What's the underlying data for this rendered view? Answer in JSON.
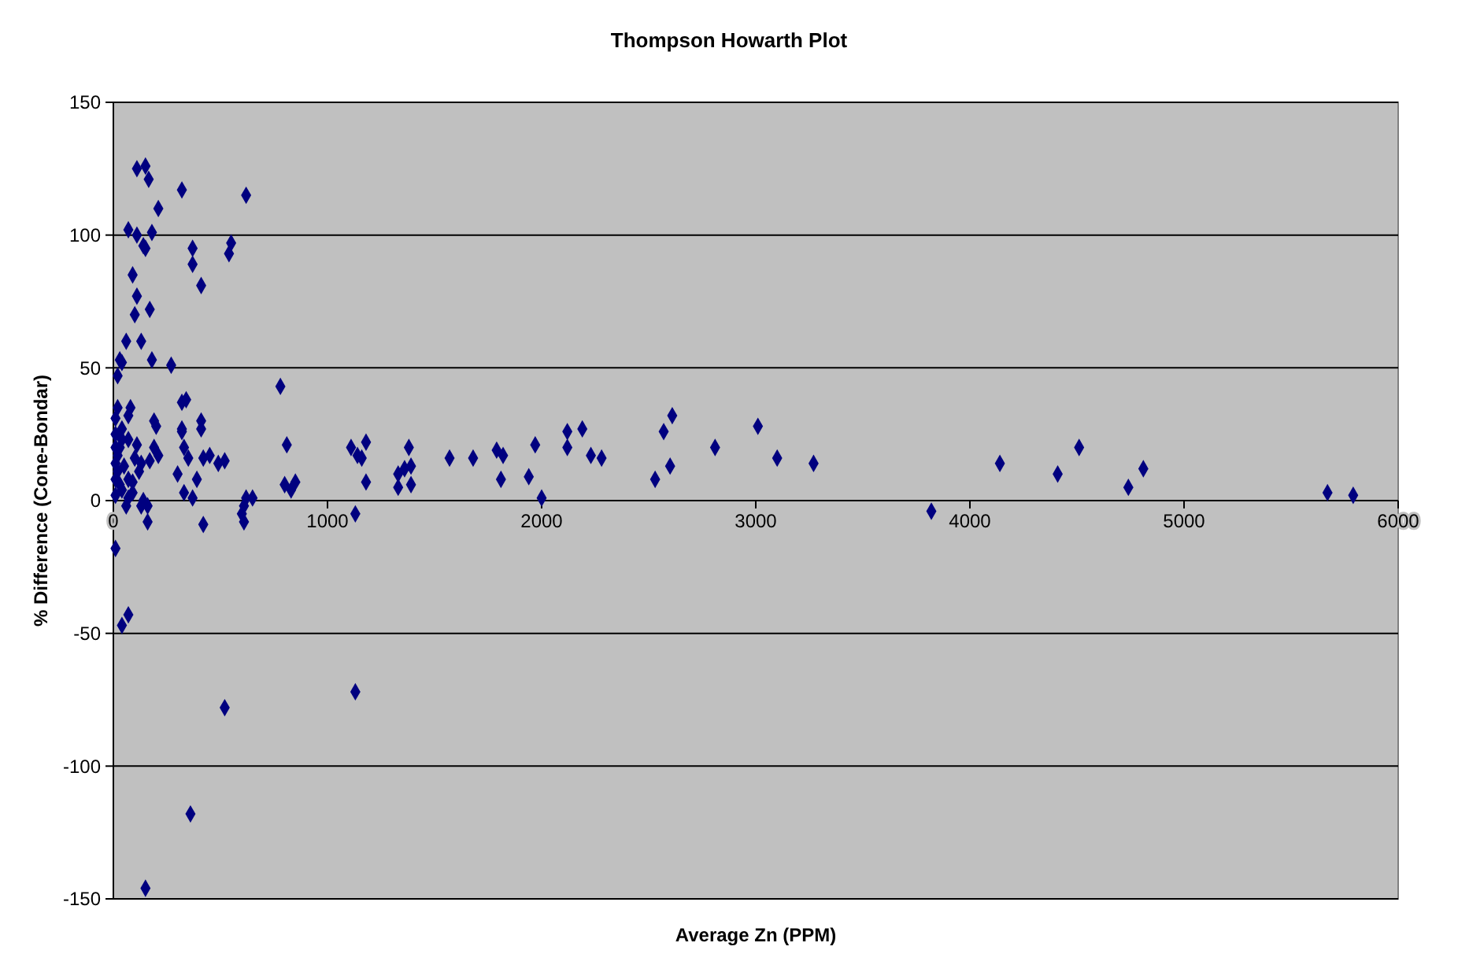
{
  "chart_data": {
    "type": "scatter",
    "title": "Thompson Howarth Plot",
    "xlabel": "Average Zn (PPM)",
    "ylabel": "% Difference (Cone-Bondar)",
    "xlim": [
      0,
      6000
    ],
    "ylim": [
      -150,
      150
    ],
    "xticks": [
      0,
      1000,
      2000,
      3000,
      4000,
      5000,
      6000
    ],
    "yticks": [
      -150,
      -100,
      -50,
      0,
      50,
      100,
      150
    ],
    "grid": "y",
    "marker": "diamond",
    "series": [
      {
        "color": "#000080",
        "x": [
          110,
          150,
          165,
          320,
          210,
          620,
          70,
          110,
          140,
          150,
          180,
          370,
          540,
          550,
          90,
          370,
          410,
          110,
          100,
          170,
          60,
          130,
          180,
          270,
          780,
          20,
          40,
          30,
          320,
          340,
          410,
          410,
          200,
          190,
          20,
          70,
          80,
          110,
          130,
          120,
          170,
          190,
          210,
          320,
          320,
          330,
          350,
          420,
          450,
          490,
          520,
          300,
          390,
          330,
          370,
          10,
          70,
          140,
          160,
          60,
          620,
          610,
          650,
          600,
          610,
          420,
          160,
          130,
          10,
          20,
          30,
          40,
          10,
          40,
          70,
          70,
          30,
          40,
          90,
          90,
          10,
          20,
          50,
          100,
          10,
          10,
          10,
          40,
          70,
          520,
          360,
          150,
          1130,
          1130,
          1330,
          1380,
          1390,
          1360,
          1330,
          1390,
          1570,
          1680,
          1790,
          1820,
          1810,
          1940,
          1970,
          2000,
          2120,
          2120,
          2190,
          2230,
          2280,
          2530,
          2570,
          2600,
          2610,
          2810,
          3010,
          3100,
          3270,
          3820,
          4140,
          4410,
          4510,
          4740,
          4810,
          5670,
          5790,
          810,
          800,
          830,
          850,
          1110,
          1140,
          1160,
          1180,
          1180
        ],
        "values": [
          125,
          126,
          121,
          117,
          110,
          115,
          102,
          100,
          96,
          95,
          101,
          95,
          93,
          97,
          85,
          89,
          81,
          77,
          70,
          72,
          60,
          60,
          53,
          51,
          43,
          47,
          52,
          53,
          37,
          38,
          30,
          27,
          28,
          30,
          35,
          32,
          35,
          21,
          14,
          11,
          15,
          20,
          17,
          27,
          26,
          20,
          16,
          16,
          17,
          14,
          15,
          10,
          8,
          3,
          1,
          2,
          1,
          0,
          -2,
          -2,
          1,
          -2,
          1,
          -5,
          -8,
          -9,
          -8,
          -2,
          14,
          17,
          20,
          23,
          25,
          27,
          23,
          8,
          6,
          4,
          3,
          7,
          8,
          11,
          13,
          16,
          20,
          31,
          -18,
          -47,
          -43,
          -78,
          -118,
          -146,
          -72,
          -5,
          10,
          20,
          13,
          12,
          5,
          6,
          16,
          16,
          19,
          17,
          8,
          9,
          21,
          1,
          26,
          20,
          27,
          17,
          16,
          8,
          26,
          13,
          32,
          20,
          28,
          16,
          14,
          -4,
          14,
          10,
          20,
          5,
          12,
          3,
          2,
          21,
          6,
          4,
          7,
          20,
          17,
          16,
          22,
          7
        ]
      }
    ]
  }
}
